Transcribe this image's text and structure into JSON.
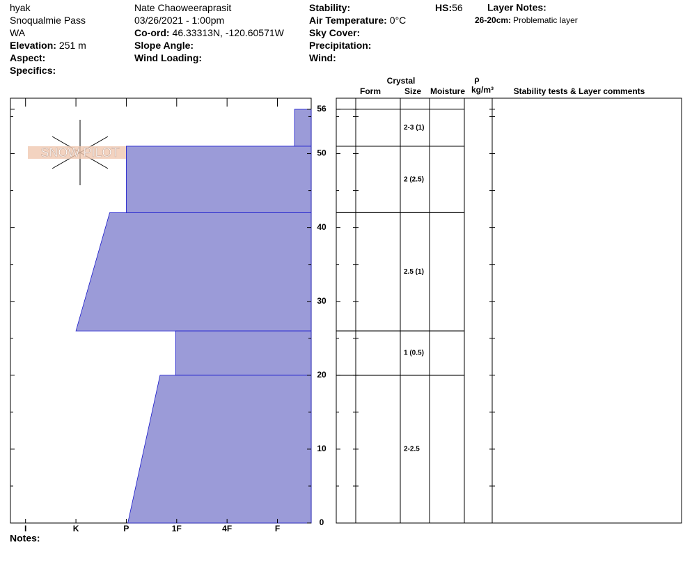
{
  "header": {
    "col1": [
      {
        "value": "hyak"
      },
      {
        "value": "Snoqualmie Pass"
      },
      {
        "value": "WA"
      },
      {
        "label": "Elevation:",
        "value": "251 m"
      },
      {
        "label": "Aspect:"
      },
      {
        "label": "Specifics:"
      }
    ],
    "col2": [
      {
        "value": "Nate Chaoweeraprasit"
      },
      {
        "value": "03/26/2021 - 1:00pm"
      },
      {
        "label": "Co-ord:",
        "value": "46.33313N, -120.60571W"
      },
      {
        "label": "Slope Angle:"
      },
      {
        "label": "Wind Loading:"
      }
    ],
    "col3": [
      {
        "label": "Stability:"
      },
      {
        "label": "Air Temperature:",
        "value": "0°C"
      },
      {
        "label": "Sky Cover:"
      },
      {
        "label": "Precipitation:"
      },
      {
        "label": "Wind:"
      }
    ],
    "hs": {
      "label": "HS:",
      "value": "56"
    },
    "layer_notes": {
      "label": "Layer Notes:",
      "notes": [
        {
          "range": "26-20cm:",
          "text": "Problematic layer"
        }
      ]
    }
  },
  "logo": "SNOW PILOT",
  "profile": {
    "ylim": [
      0,
      57.5
    ],
    "yticks": [
      0,
      10,
      20,
      30,
      40,
      50,
      56
    ],
    "minor_yticks": [
      5,
      15,
      25,
      35,
      45,
      55
    ],
    "xlim": [
      0.7,
      6.67
    ],
    "xticks": [
      {
        "value": 1,
        "label": "I"
      },
      {
        "value": 2,
        "label": "K"
      },
      {
        "value": 3,
        "label": "P"
      },
      {
        "value": 4,
        "label": "1F"
      },
      {
        "value": 5,
        "label": "4F"
      },
      {
        "value": 6,
        "label": "F"
      }
    ],
    "layers": [
      {
        "top": 56,
        "bottom": 51,
        "hardness_top": 6.34,
        "hardness_bottom": 6.34,
        "size": "2-3 (1)"
      },
      {
        "top": 51,
        "bottom": 42,
        "hardness_top": 3,
        "hardness_bottom": 3,
        "size": "2 (2.5)"
      },
      {
        "top": 42,
        "bottom": 26,
        "hardness_top": 2.67,
        "hardness_bottom": 2,
        "size": "2.5 (1)"
      },
      {
        "top": 26,
        "bottom": 20,
        "hardness_top": 3.98,
        "hardness_bottom": 3.98,
        "size": "1 (0.5)"
      },
      {
        "top": 20,
        "bottom": 0,
        "hardness_top": 3.67,
        "hardness_bottom": 3.03,
        "size": "2-2.5"
      }
    ]
  },
  "table": {
    "crystal": "Crystal",
    "form": "Form",
    "size": "Size",
    "moisture": "Moisture",
    "rho": "ρ",
    "density_unit": "kg/m³",
    "comments": "Stability tests & Layer comments"
  },
  "notes": "Notes:"
}
